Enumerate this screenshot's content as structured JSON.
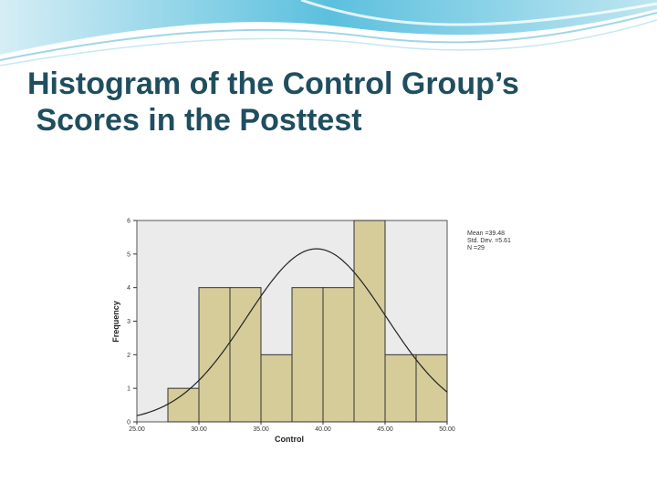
{
  "slide": {
    "title_line1": "Histogram of the Control Group’s",
    "title_line2": " Scores in the Posttest",
    "colors": {
      "title": "#1f4e5f",
      "accent": "#5bc0de"
    }
  },
  "chart_data": {
    "type": "bar",
    "subtype": "histogram-with-normal-curve",
    "xlabel": "Control",
    "ylabel": "Frequency",
    "xlim": [
      25,
      50
    ],
    "ylim": [
      0,
      6
    ],
    "x_ticks": [
      25,
      30,
      35,
      40,
      45,
      50
    ],
    "x_tick_labels": [
      "25.00",
      "30.00",
      "35.00",
      "40.00",
      "45.00",
      "50.00"
    ],
    "y_ticks": [
      0,
      1,
      2,
      3,
      4,
      5,
      6
    ],
    "bin_width": 2.5,
    "bins": [
      {
        "start": 27.5,
        "end": 30.0,
        "count": 1
      },
      {
        "start": 30.0,
        "end": 32.5,
        "count": 4
      },
      {
        "start": 32.5,
        "end": 35.0,
        "count": 4
      },
      {
        "start": 35.0,
        "end": 37.5,
        "count": 2
      },
      {
        "start": 37.5,
        "end": 40.0,
        "count": 4
      },
      {
        "start": 40.0,
        "end": 42.5,
        "count": 4
      },
      {
        "start": 42.5,
        "end": 45.0,
        "count": 6
      },
      {
        "start": 45.0,
        "end": 47.5,
        "count": 2
      },
      {
        "start": 47.5,
        "end": 50.0,
        "count": 2
      }
    ],
    "stats_labels": [
      "Mean =39.48",
      "Std. Dev. =5.61",
      "N =29"
    ],
    "normal_curve": {
      "mean": 39.48,
      "std": 5.61,
      "n": 29
    },
    "colors": {
      "bar_fill": "#d5cc9a",
      "bar_stroke": "#333333",
      "plot_bg": "#ebebeb",
      "curve": "#222222"
    },
    "grid": false,
    "legend": "top-right"
  }
}
